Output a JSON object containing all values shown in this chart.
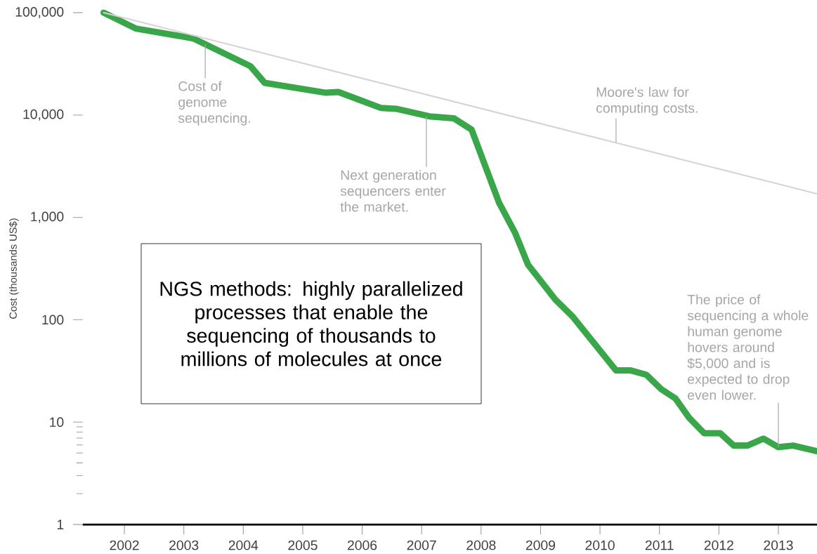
{
  "chart_data": {
    "type": "line",
    "ylabel": "Cost (thousands US$)",
    "log": "y",
    "xlim": [
      2001.3,
      2013.65
    ],
    "xticks": [
      2002,
      2003,
      2004,
      2005,
      2006,
      2007,
      2008,
      2009,
      2010,
      2011,
      2012,
      2013
    ],
    "ylim": [
      1,
      100000
    ],
    "yticks": [
      {
        "value": 1,
        "label": "1"
      },
      {
        "value": 2,
        "label": null
      },
      {
        "value": 3,
        "label": null
      },
      {
        "value": 4,
        "label": null
      },
      {
        "value": 5,
        "label": null
      },
      {
        "value": 6,
        "label": null
      },
      {
        "value": 7,
        "label": null
      },
      {
        "value": 8,
        "label": null
      },
      {
        "value": 9,
        "label": null
      },
      {
        "value": 10,
        "label": "10"
      },
      {
        "value": 100,
        "label": "100"
      },
      {
        "value": 1000,
        "label": "1,000"
      },
      {
        "value": 10000,
        "label": "10,000"
      },
      {
        "value": 100000,
        "label": "100,000"
      }
    ],
    "grid": false,
    "marker": "none",
    "series": [
      {
        "color": "#3aa64a",
        "x": [
          2001.65,
          2002.19,
          2003.16,
          2004.12,
          2004.36,
          2005.39,
          2005.6,
          2006.32,
          2006.57,
          2007.13,
          2007.54,
          2007.84,
          2008.3,
          2008.57,
          2008.79,
          2009.25,
          2009.53,
          2010.27,
          2010.52,
          2010.78,
          2011.03,
          2011.27,
          2011.5,
          2011.75,
          2012.02,
          2012.25,
          2012.48,
          2012.75,
          2013.0,
          2013.25,
          2013.65
        ],
        "values": [
          100000,
          70000,
          56000,
          30000,
          20600,
          16500,
          16800,
          11700,
          11500,
          9700,
          9300,
          7200,
          1400,
          710,
          345,
          157,
          109,
          32,
          32,
          29,
          21,
          17,
          11,
          7.8,
          7.8,
          5.9,
          5.9,
          6.9,
          5.7,
          5.9,
          5.2
        ]
      },
      {
        "color": "#d4d4d4",
        "x": [
          2001.65,
          2013.65
        ],
        "values": [
          100000,
          1700
        ]
      }
    ],
    "annotations": [
      {
        "text": "Cost of genome sequencing.",
        "x": 2003.36,
        "y": 49000
      },
      {
        "text": "Moore's law for computing costs.",
        "x": 2010.27,
        "y": 5400
      },
      {
        "text": "Next generation sequencers enter the market.",
        "x": 2007.08,
        "y": 9700
      },
      {
        "text": "The price of sequencing a whole human genome hovers around $5,000 and is expected to drop even lower.",
        "x": 2013.0,
        "y": 5.7
      },
      "NGS methods: highly parallelized processes that enable the sequencing of thousands to millions of molecules at once"
    ]
  }
}
